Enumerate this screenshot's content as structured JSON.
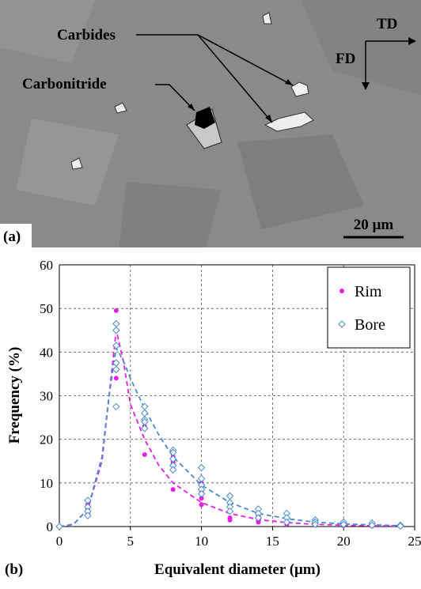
{
  "micrograph": {
    "panel_label": "(a)",
    "carbides": "Carbides",
    "carbonitride": "Carbonitride",
    "td": "TD",
    "fd": "FD",
    "scale_bar": "20 µm"
  },
  "chart_data": {
    "type": "scatter",
    "panel_label": "(b)",
    "x_label": "Equivalent diameter (μm)",
    "y_label": "Frequency (%)",
    "xlim": [
      0,
      25
    ],
    "xticks": [
      0,
      5,
      10,
      15,
      20,
      25
    ],
    "ylim": [
      0,
      60
    ],
    "yticks": [
      0,
      10,
      20,
      30,
      40,
      50,
      60
    ],
    "grid": true,
    "legend": "upper right",
    "series": [
      {
        "name": "Rim",
        "color": "#e81ee8",
        "marker": "circle",
        "x": [
          0,
          2,
          2,
          2,
          2,
          4,
          4,
          4,
          6,
          6,
          6,
          6,
          8,
          8,
          8,
          8,
          10,
          10,
          10,
          10,
          12,
          12,
          12,
          12,
          14,
          14,
          14,
          16,
          16,
          18,
          18,
          20,
          22,
          24
        ],
        "values": [
          0,
          5,
          4,
          3,
          2.5,
          49.5,
          45,
          34,
          24,
          23,
          22.5,
          16.5,
          16,
          15,
          14.5,
          8.5,
          10,
          8,
          6.5,
          5,
          5,
          3.5,
          2,
          1.5,
          2.5,
          1.5,
          1,
          1,
          0.5,
          0.5,
          0.3,
          0.2,
          0.1,
          0
        ]
      },
      {
        "name": "Bore",
        "color": "#4a8ccc",
        "marker": "diamond",
        "x": [
          0,
          2,
          2,
          2,
          2,
          4,
          4,
          4,
          4,
          4,
          4,
          6,
          6,
          6,
          6,
          6,
          8,
          8,
          8,
          8,
          8,
          10,
          10,
          10,
          10,
          10,
          12,
          12,
          12,
          12,
          14,
          14,
          14,
          16,
          16,
          16,
          18,
          18,
          18,
          20,
          20,
          22,
          22,
          24,
          24
        ],
        "values": [
          0,
          6,
          4.5,
          3.5,
          2.5,
          46.5,
          45,
          41.5,
          37.5,
          36,
          27.5,
          27.5,
          26,
          24.5,
          24,
          22.5,
          17.5,
          17,
          15.5,
          14,
          13,
          13.5,
          11,
          9.5,
          8.5,
          7.5,
          7,
          5.5,
          4.5,
          3.5,
          4,
          3,
          2,
          3,
          2,
          1,
          1.5,
          1,
          0.5,
          1,
          0.5,
          0.8,
          0.3,
          0.3,
          0.1
        ]
      }
    ],
    "fits": [
      {
        "color": "#e81ee8",
        "x": [
          0,
          1,
          2,
          3,
          3.5,
          4,
          4.5,
          5,
          6,
          7,
          8,
          10,
          12,
          14,
          16,
          18,
          20,
          24
        ],
        "values": [
          0,
          0.5,
          4,
          15,
          30,
          45,
          38,
          28,
          20,
          14,
          10,
          5.5,
          3,
          1.6,
          0.9,
          0.5,
          0.3,
          0.1
        ]
      },
      {
        "color": "#4a8ccc",
        "x": [
          0,
          1,
          2,
          3,
          3.5,
          4,
          4.5,
          5,
          6,
          7,
          8,
          10,
          12,
          14,
          16,
          18,
          20,
          24
        ],
        "values": [
          0,
          0.5,
          4,
          16,
          30,
          41,
          38,
          34,
          27,
          21,
          16,
          9.5,
          5.5,
          3,
          1.8,
          1,
          0.6,
          0.2
        ]
      }
    ]
  }
}
